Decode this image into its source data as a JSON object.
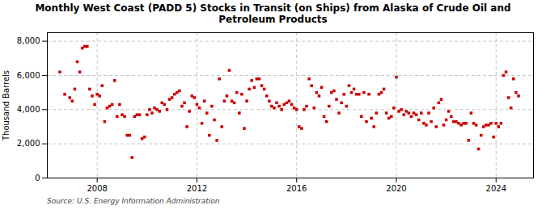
{
  "chart_data": {
    "type": "scatter",
    "title": "Monthly West Coast (PADD 5) Stocks in Transit (on Ships) from Alaska of Crude Oil and\nPetroleum Products",
    "ylabel": "Thousand Barrels",
    "source": "Source: U.S. Energy Information Administration",
    "color": "#CC0000",
    "marker": "square",
    "grid": true,
    "x": [
      2006.5,
      2006.7,
      2006.9,
      2007.0,
      2007.1,
      2007.2,
      2007.3,
      2007.4,
      2007.5,
      2007.6,
      2007.7,
      2007.8,
      2007.9,
      2008.0,
      2008.1,
      2008.2,
      2008.3,
      2008.4,
      2008.5,
      2008.6,
      2008.7,
      2008.8,
      2008.9,
      2009.0,
      2009.1,
      2009.2,
      2009.3,
      2009.4,
      2009.5,
      2009.6,
      2009.7,
      2009.8,
      2009.9,
      2010.0,
      2010.1,
      2010.2,
      2010.3,
      2010.4,
      2010.5,
      2010.6,
      2010.7,
      2010.8,
      2010.9,
      2011.0,
      2011.1,
      2011.2,
      2011.3,
      2011.4,
      2011.5,
      2011.6,
      2011.7,
      2011.8,
      2011.9,
      2012.0,
      2012.1,
      2012.2,
      2012.3,
      2012.4,
      2012.5,
      2012.6,
      2012.7,
      2012.8,
      2012.9,
      2013.0,
      2013.1,
      2013.2,
      2013.3,
      2013.4,
      2013.5,
      2013.6,
      2013.7,
      2013.8,
      2013.9,
      2014.0,
      2014.1,
      2014.2,
      2014.3,
      2014.4,
      2014.5,
      2014.6,
      2014.7,
      2014.8,
      2014.9,
      2015.0,
      2015.1,
      2015.2,
      2015.3,
      2015.4,
      2015.5,
      2015.6,
      2015.7,
      2015.8,
      2015.9,
      2016.0,
      2016.1,
      2016.2,
      2016.3,
      2016.4,
      2016.5,
      2016.6,
      2016.7,
      2016.8,
      2016.9,
      2017.0,
      2017.1,
      2017.2,
      2017.3,
      2017.4,
      2017.5,
      2017.6,
      2017.7,
      2017.8,
      2017.9,
      2018.0,
      2018.1,
      2018.2,
      2018.3,
      2018.4,
      2018.5,
      2018.6,
      2018.7,
      2018.8,
      2018.9,
      2019.0,
      2019.1,
      2019.2,
      2019.3,
      2019.4,
      2019.5,
      2019.6,
      2019.7,
      2019.8,
      2019.9,
      2020.0,
      2020.1,
      2020.2,
      2020.3,
      2020.4,
      2020.5,
      2020.6,
      2020.7,
      2020.8,
      2020.9,
      2021.0,
      2021.1,
      2021.2,
      2021.3,
      2021.4,
      2021.5,
      2021.6,
      2021.7,
      2021.8,
      2021.9,
      2022.0,
      2022.1,
      2022.2,
      2022.3,
      2022.4,
      2022.5,
      2022.6,
      2022.7,
      2022.8,
      2022.9,
      2023.0,
      2023.1,
      2023.2,
      2023.3,
      2023.4,
      2023.5,
      2023.6,
      2023.7,
      2023.8,
      2023.9,
      2024.0,
      2024.1,
      2024.2,
      2024.3,
      2024.4,
      2024.5,
      2024.6,
      2024.7,
      2024.8,
      2024.9
    ],
    "values": [
      6200,
      4900,
      4700,
      4500,
      5200,
      6800,
      6200,
      7600,
      7700,
      7700,
      5200,
      4800,
      4300,
      4900,
      4800,
      5400,
      3300,
      4100,
      4200,
      4300,
      5700,
      3600,
      4300,
      3700,
      3600,
      2500,
      2500,
      1200,
      3600,
      3700,
      3700,
      2300,
      2400,
      3700,
      4000,
      3800,
      4100,
      4000,
      3900,
      4400,
      4300,
      4000,
      4600,
      4700,
      4900,
      5000,
      5100,
      4200,
      4400,
      3000,
      3900,
      4800,
      4700,
      4300,
      4100,
      3200,
      4500,
      3800,
      2500,
      4200,
      3400,
      2200,
      5800,
      3000,
      4500,
      4800,
      6300,
      4500,
      4400,
      5000,
      3800,
      4900,
      2900,
      4500,
      5200,
      5700,
      5300,
      5800,
      5800,
      5400,
      5200,
      4800,
      4500,
      4200,
      4100,
      4400,
      4200,
      4000,
      4300,
      4400,
      4500,
      4300,
      4100,
      4000,
      3000,
      2900,
      4000,
      4200,
      5800,
      5400,
      4100,
      5000,
      4800,
      5300,
      3600,
      3300,
      4200,
      5000,
      5100,
      4600,
      3800,
      4400,
      4900,
      4200,
      5400,
      5000,
      5200,
      4900,
      4900,
      3600,
      5000,
      3300,
      4900,
      3500,
      3000,
      3800,
      4900,
      5000,
      5200,
      3800,
      3500,
      3600,
      4100,
      5900,
      3900,
      4000,
      3700,
      3900,
      3800,
      3600,
      3800,
      3700,
      3400,
      3800,
      3200,
      3100,
      3800,
      3300,
      4100,
      3000,
      4400,
      4600,
      3100,
      3400,
      3900,
      3600,
      3300,
      3300,
      3200,
      3100,
      3200,
      3200,
      2200,
      3800,
      3200,
      3100,
      1700,
      2500,
      3000,
      3100,
      3100,
      3200,
      2400,
      3200,
      3000,
      3200,
      6000,
      6200,
      4700,
      4100,
      5800,
      5000,
      4800
    ],
    "xlim": [
      2006.0,
      2025.5
    ],
    "xticks": [
      2008,
      2012,
      2016,
      2020,
      2024
    ],
    "ylim": [
      0,
      8500
    ],
    "yticks": [
      0,
      {
        "value": 2000,
        "label": "2,000"
      },
      {
        "value": 4000,
        "label": "4,000"
      },
      {
        "value": 6000,
        "label": "6,000"
      },
      {
        "value": 8000,
        "label": "8,000"
      }
    ]
  }
}
